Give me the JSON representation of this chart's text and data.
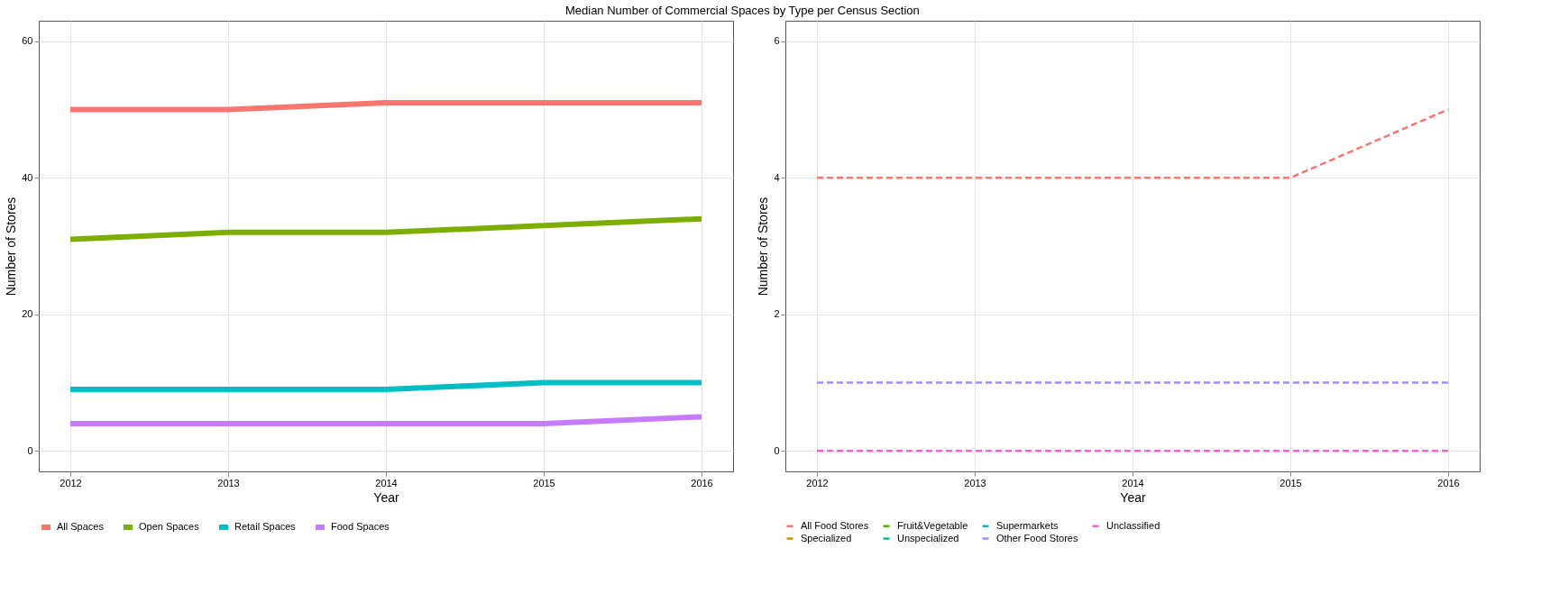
{
  "chart_data": [
    {
      "type": "line",
      "title": "Median Number of Commercial Spaces by Type per Census Section",
      "xlabel": "Year",
      "ylabel": "Number of Stores",
      "x": [
        2012,
        2013,
        2014,
        2015,
        2016
      ],
      "xlim": [
        2011.8,
        2016.2
      ],
      "xticks": [
        2012,
        2013,
        2014,
        2015,
        2016
      ],
      "ylim": [
        -3,
        63
      ],
      "yticks": [
        0,
        20,
        40,
        60
      ],
      "grid": true,
      "legend": "bottom",
      "line_style": "solid",
      "series": [
        {
          "name": "All Spaces",
          "color": "#f8766d",
          "values": [
            50,
            50,
            51,
            51,
            51
          ]
        },
        {
          "name": "Open Spaces",
          "color": "#7cae00",
          "values": [
            31,
            32,
            32,
            33,
            34
          ]
        },
        {
          "name": "Retail Spaces",
          "color": "#00bfc4",
          "values": [
            9,
            9,
            9,
            10,
            10
          ]
        },
        {
          "name": "Food Spaces",
          "color": "#c77cff",
          "values": [
            4,
            4,
            4,
            4,
            5
          ]
        }
      ]
    },
    {
      "type": "line",
      "xlabel": "Year",
      "ylabel": "Number of Stores",
      "x": [
        2012,
        2013,
        2014,
        2015,
        2016
      ],
      "xlim": [
        2011.8,
        2016.2
      ],
      "xticks": [
        2012,
        2013,
        2014,
        2015,
        2016
      ],
      "ylim": [
        -0.3,
        6.3
      ],
      "yticks": [
        0,
        2,
        4,
        6
      ],
      "grid": true,
      "legend": "bottom",
      "line_style": "dashed",
      "series": [
        {
          "name": "All Food Stores",
          "color": "#f8766d",
          "values": [
            4,
            4,
            4,
            4,
            5
          ]
        },
        {
          "name": "Fruit&Vegetable",
          "color": "#53b400",
          "values": [
            null,
            null,
            null,
            null,
            null
          ]
        },
        {
          "name": "Supermarkets",
          "color": "#00b6eb",
          "values": [
            null,
            null,
            null,
            null,
            null
          ]
        },
        {
          "name": "Unclassified",
          "color": "#fb61d7",
          "values": [
            0,
            0,
            0,
            0,
            0
          ]
        },
        {
          "name": "Specialized",
          "color": "#c49a00",
          "values": [
            null,
            null,
            null,
            null,
            null
          ]
        },
        {
          "name": "Unspecialized",
          "color": "#00c094",
          "values": [
            null,
            null,
            null,
            null,
            null
          ]
        },
        {
          "name": "Other Food Stores",
          "color": "#a58aff",
          "values": [
            1,
            1,
            1,
            1,
            1
          ]
        }
      ]
    }
  ]
}
